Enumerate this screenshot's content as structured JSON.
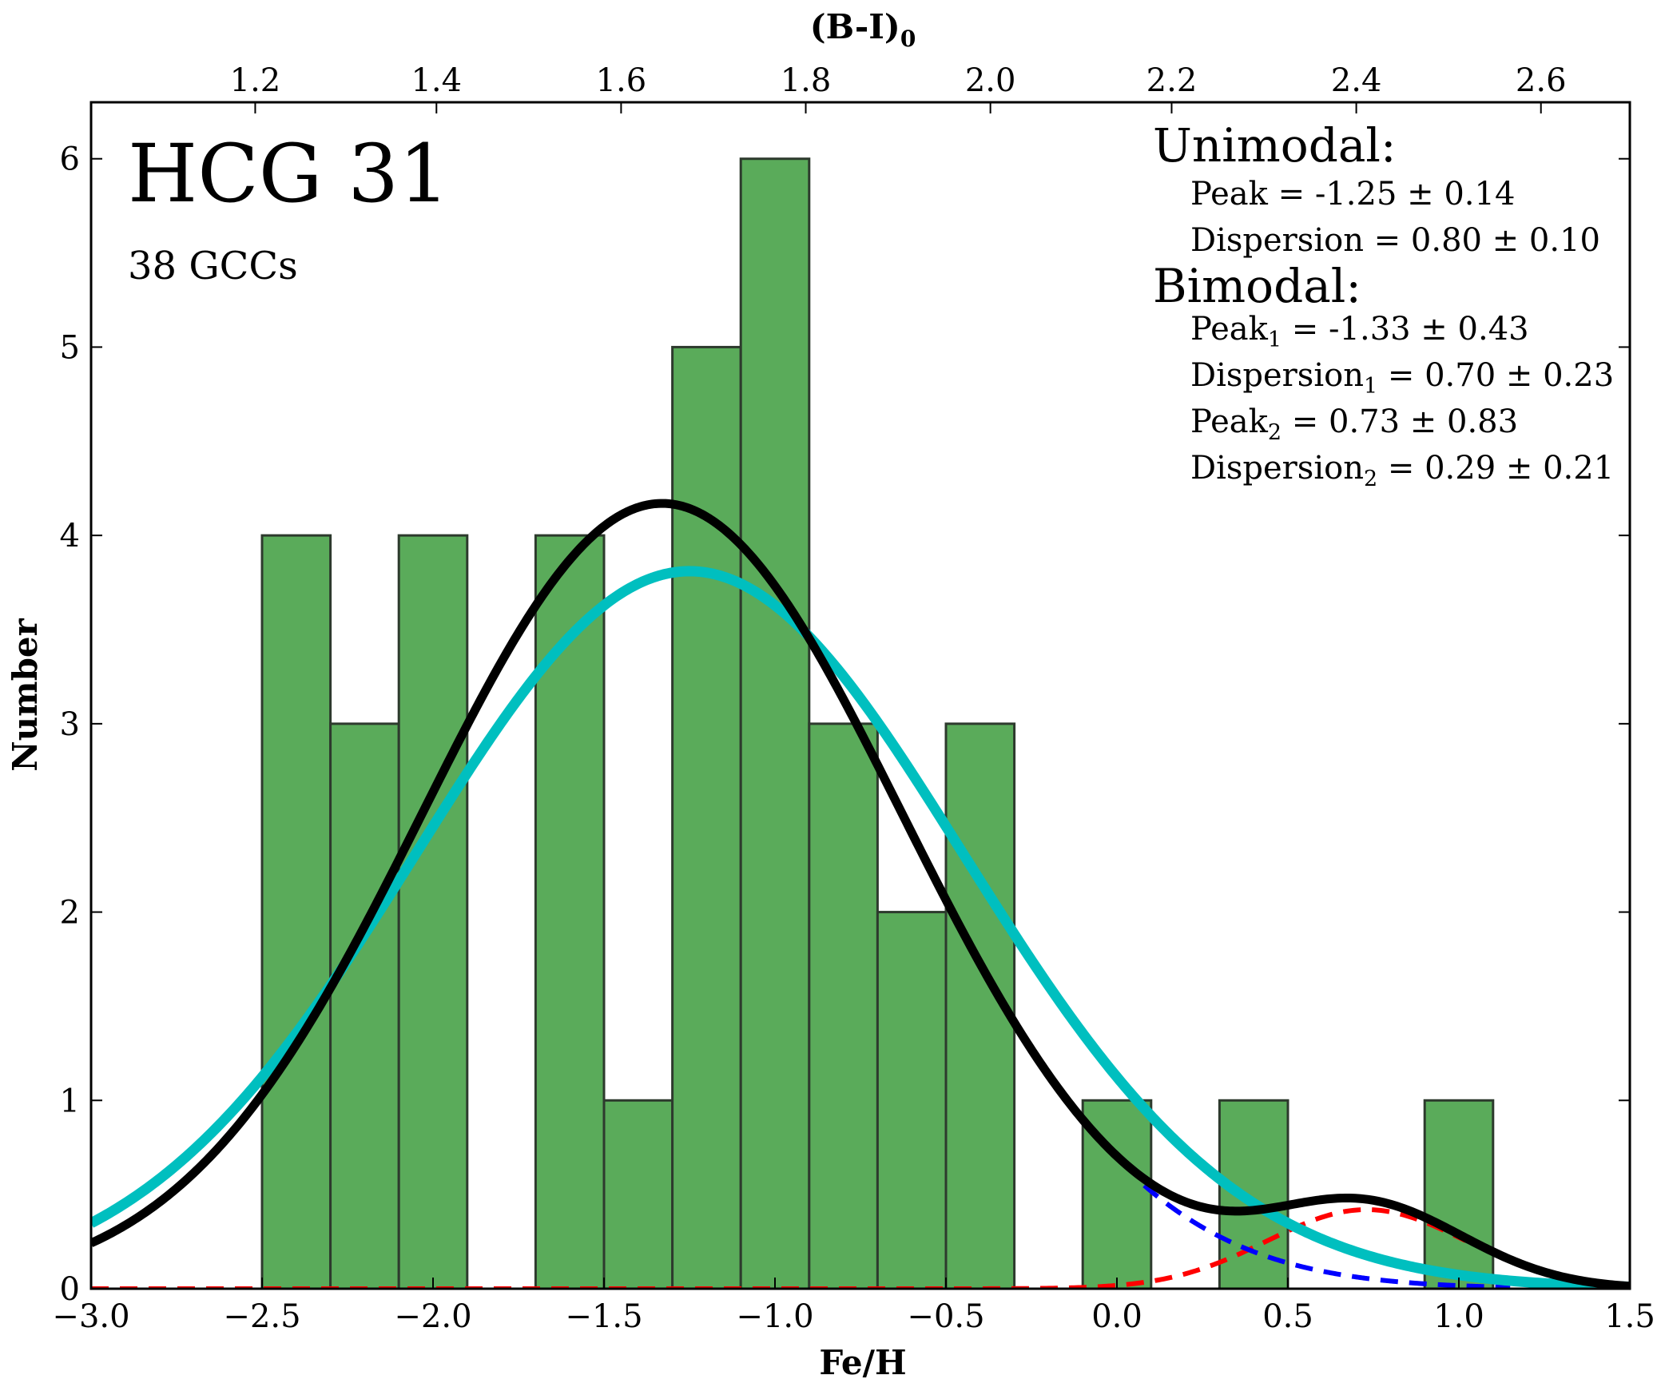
{
  "chart_data": {
    "type": "histogram",
    "title": "HCG 31",
    "subtitle": "38 GCCs",
    "xlabel": "Fe/H",
    "ylabel": "Number",
    "top_xlabel_base": "(B-I)",
    "top_xlabel_sub": "0",
    "xlim": [
      -3.0,
      1.5
    ],
    "ylim": [
      0,
      6.3
    ],
    "x_ticks": [
      -3.0,
      -2.5,
      -2.0,
      -1.5,
      -1.0,
      -0.5,
      0.0,
      0.5,
      1.0,
      1.5
    ],
    "x_tick_labels": [
      "−3.0",
      "−2.5",
      "−2.0",
      "−1.5",
      "−1.0",
      "−0.5",
      "0.0",
      "0.5",
      "1.0",
      "1.5"
    ],
    "y_ticks": [
      0,
      1,
      2,
      3,
      4,
      5,
      6
    ],
    "y_tick_labels": [
      "0",
      "1",
      "2",
      "3",
      "4",
      "5",
      "6"
    ],
    "top_ticks_feh": [
      -2.52,
      -1.99,
      -1.45,
      -0.91,
      -0.37,
      0.16,
      0.7,
      1.24
    ],
    "top_tick_labels": [
      "1.2",
      "1.4",
      "1.6",
      "1.8",
      "2.0",
      "2.2",
      "2.4",
      "2.6"
    ],
    "bins": {
      "edges": [
        -2.5,
        -2.3,
        -2.1,
        -1.9,
        -1.7,
        -1.5,
        -1.3,
        -1.1,
        -0.9,
        -0.7,
        -0.5,
        -0.3,
        -0.1,
        0.1,
        0.3,
        0.5,
        0.7,
        0.9,
        1.1
      ],
      "counts": [
        4,
        3,
        4,
        0,
        4,
        1,
        5,
        6,
        3,
        2,
        3,
        0,
        1,
        0,
        1,
        0,
        0,
        1
      ]
    },
    "series": [
      {
        "name": "Unimodal fit",
        "style": "solid",
        "color": "#00bfbf",
        "mu": -1.25,
        "sigma": 0.8,
        "amp": 3.81
      },
      {
        "name": "Bimodal total",
        "style": "solid",
        "color": "#000000",
        "components": [
          {
            "mu": -1.33,
            "sigma": 0.7,
            "amp": 4.17
          },
          {
            "mu": 0.73,
            "sigma": 0.29,
            "amp": 0.42
          }
        ]
      },
      {
        "name": "Bimodal component 1",
        "style": "dashed",
        "color": "#0000ff",
        "mu": -1.33,
        "sigma": 0.7,
        "amp": 4.17,
        "shown_from": 0.08
      },
      {
        "name": "Bimodal component 2",
        "style": "dashed",
        "color": "#ff0000",
        "mu": 0.73,
        "sigma": 0.29,
        "amp": 0.42
      }
    ],
    "colors": {
      "bar_fill": "#5aab5a",
      "bar_edge": "#2d3a2d"
    },
    "annotations": {
      "unimodal_title": "Unimodal:",
      "unimodal_peak": "Peak = -1.25 ± 0.14",
      "unimodal_dispersion": "Dispersion = 0.80 ± 0.10",
      "bimodal_title": "Bimodal:",
      "peak1": {
        "label": "Peak",
        "sub": "1",
        "value": " = -1.33 ± 0.43"
      },
      "dispersion1": {
        "label": "Dispersion",
        "sub": "1",
        "value": " = 0.70 ± 0.23"
      },
      "peak2": {
        "label": "Peak",
        "sub": "2",
        "value": " = 0.73 ± 0.83"
      },
      "dispersion2": {
        "label": "Dispersion",
        "sub": "2",
        "value": " = 0.29 ± 0.21"
      }
    }
  }
}
